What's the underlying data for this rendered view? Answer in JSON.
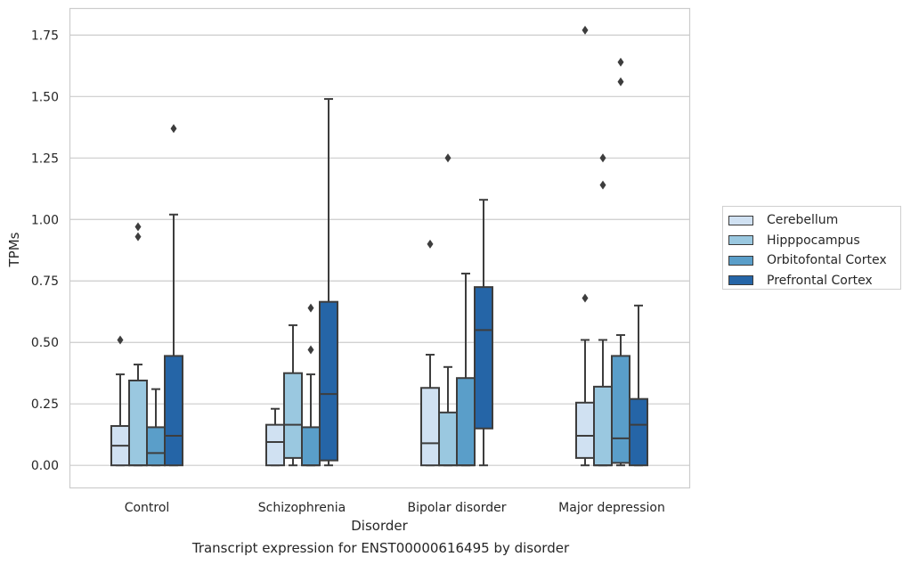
{
  "chart_data": {
    "type": "box",
    "caption": "Transcript expression for ENST00000616495 by disorder",
    "xlabel": "Disorder",
    "ylabel": "TPMs",
    "ylim": [
      -0.09,
      1.86
    ],
    "yticks": [
      "0.00",
      "0.25",
      "0.50",
      "0.75",
      "1.00",
      "1.25",
      "1.50",
      "1.75"
    ],
    "ytick_values": [
      0,
      0.25,
      0.5,
      0.75,
      1.0,
      1.25,
      1.5,
      1.75
    ],
    "grid": true,
    "legend_position": "right",
    "categories": [
      "Control",
      "Schizophrenia",
      "Bipolar disorder",
      "Major depression"
    ],
    "series": [
      {
        "name": "Cerebellum",
        "color": "#d0e1f2",
        "boxes": [
          {
            "whislo": 0.0,
            "q1": 0.0,
            "med": 0.08,
            "q3": 0.16,
            "whishi": 0.37,
            "fliers": [
              0.51
            ]
          },
          {
            "whislo": 0.0,
            "q1": 0.0,
            "med": 0.095,
            "q3": 0.165,
            "whishi": 0.23,
            "fliers": []
          },
          {
            "whislo": 0.0,
            "q1": 0.0,
            "med": 0.09,
            "q3": 0.315,
            "whishi": 0.45,
            "fliers": [
              0.9
            ]
          },
          {
            "whislo": 0.0,
            "q1": 0.03,
            "med": 0.12,
            "q3": 0.255,
            "whishi": 0.51,
            "fliers": [
              0.68,
              1.77
            ]
          }
        ]
      },
      {
        "name": "Hipppocampus",
        "color": "#9ac8e0",
        "boxes": [
          {
            "whislo": 0.0,
            "q1": 0.0,
            "med": 0.0,
            "q3": 0.345,
            "whishi": 0.41,
            "fliers": [
              0.93,
              0.97
            ]
          },
          {
            "whislo": 0.0,
            "q1": 0.03,
            "med": 0.165,
            "q3": 0.375,
            "whishi": 0.57,
            "fliers": []
          },
          {
            "whislo": 0.0,
            "q1": 0.0,
            "med": 0.0,
            "q3": 0.215,
            "whishi": 0.4,
            "fliers": [
              1.25
            ]
          },
          {
            "whislo": 0.0,
            "q1": 0.0,
            "med": 0.0,
            "q3": 0.32,
            "whishi": 0.51,
            "fliers": [
              1.14,
              1.25
            ]
          }
        ]
      },
      {
        "name": "Orbitofontal Cortex",
        "color": "#5a9ec9",
        "boxes": [
          {
            "whislo": 0.0,
            "q1": 0.0,
            "med": 0.05,
            "q3": 0.155,
            "whishi": 0.31,
            "fliers": []
          },
          {
            "whislo": 0.0,
            "q1": 0.0,
            "med": 0.0,
            "q3": 0.155,
            "whishi": 0.37,
            "fliers": [
              0.47,
              0.64
            ]
          },
          {
            "whislo": 0.0,
            "q1": 0.0,
            "med": 0.0,
            "q3": 0.355,
            "whishi": 0.78,
            "fliers": []
          },
          {
            "whislo": 0.0,
            "q1": 0.01,
            "med": 0.11,
            "q3": 0.445,
            "whishi": 0.53,
            "fliers": [
              1.56,
              1.64
            ]
          }
        ]
      },
      {
        "name": "Prefrontal Cortex",
        "color": "#2565a7",
        "boxes": [
          {
            "whislo": 0.0,
            "q1": 0.0,
            "med": 0.12,
            "q3": 0.445,
            "whishi": 1.02,
            "fliers": [
              1.37
            ]
          },
          {
            "whislo": 0.0,
            "q1": 0.02,
            "med": 0.29,
            "q3": 0.665,
            "whishi": 1.49,
            "fliers": []
          },
          {
            "whislo": 0.0,
            "q1": 0.15,
            "med": 0.55,
            "q3": 0.725,
            "whishi": 1.08,
            "fliers": []
          },
          {
            "whislo": 0.0,
            "q1": 0.0,
            "med": 0.165,
            "q3": 0.27,
            "whishi": 0.65,
            "fliers": []
          }
        ]
      }
    ]
  }
}
